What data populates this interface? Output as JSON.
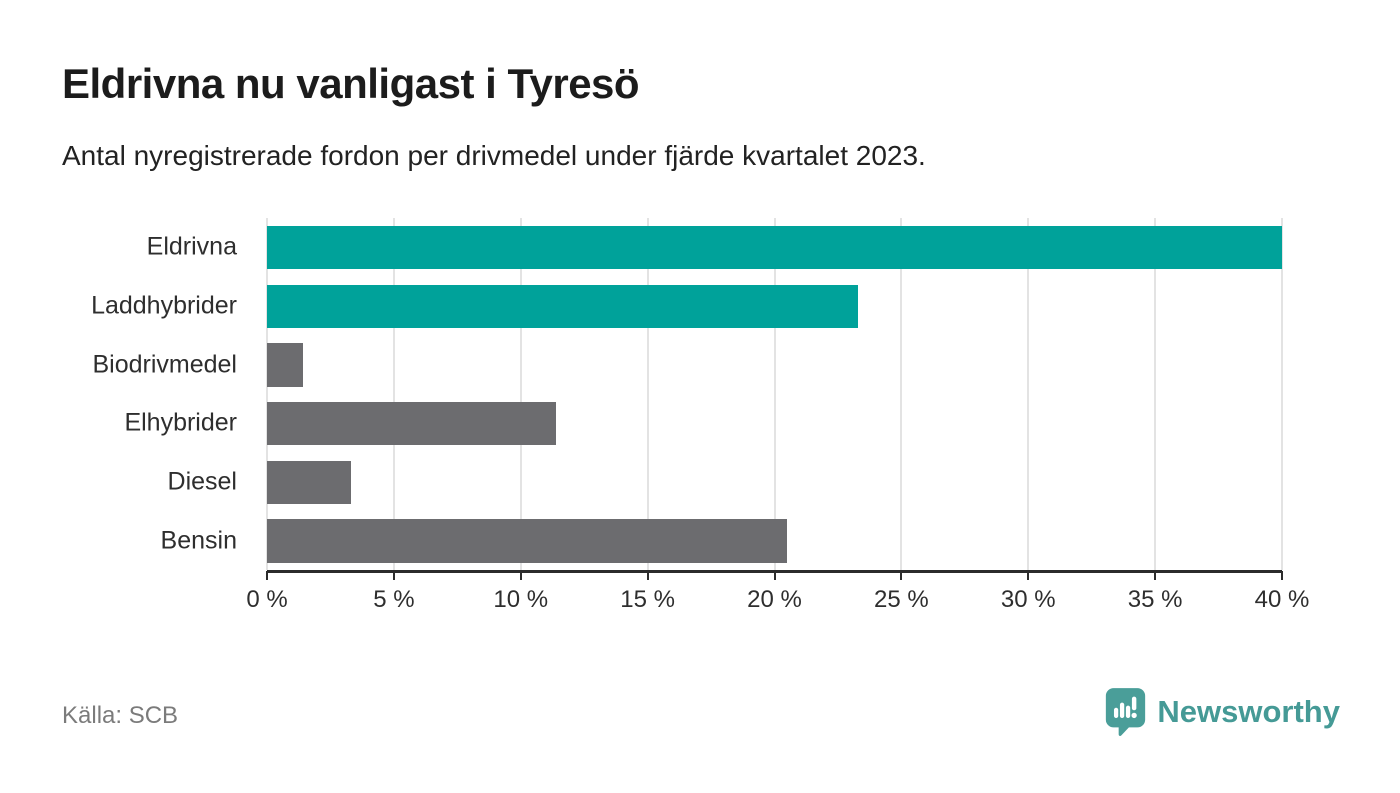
{
  "header": {
    "title": "Eldrivna nu vanligast i Tyresö",
    "subtitle": "Antal nyregistrerade fordon per drivmedel under fjärde kvartalet 2023."
  },
  "chart_data": {
    "type": "bar",
    "orientation": "horizontal",
    "title": "Eldrivna nu vanligast i Tyresö",
    "subtitle": "Antal nyregistrerade fordon per drivmedel under fjärde kvartalet 2023.",
    "categories": [
      "Eldrivna",
      "Laddhybrider",
      "Biodrivmedel",
      "Elhybrider",
      "Diesel",
      "Bensin"
    ],
    "values": [
      40.0,
      23.3,
      1.4,
      11.4,
      3.3,
      20.5
    ],
    "unit": "%",
    "bar_colors": [
      "#00a29a",
      "#00a29a",
      "#6c6c6f",
      "#6c6c6f",
      "#6c6c6f",
      "#6c6c6f"
    ],
    "highlight_color": "#00a29a",
    "default_color": "#6c6c6f",
    "xlim": [
      0,
      40
    ],
    "x_ticks": [
      0,
      5,
      10,
      15,
      20,
      25,
      30,
      35,
      40
    ],
    "x_tick_labels": [
      "0 %",
      "5 %",
      "10 %",
      "15 %",
      "20 %",
      "25 %",
      "30 %",
      "35 %",
      "40 %"
    ],
    "xlabel": "",
    "ylabel": "",
    "grid": true,
    "gridline_color": "#e3e3e3",
    "axis_color": "#2b2b2b",
    "legend": "none"
  },
  "footer": {
    "source": "Källa: SCB",
    "logo_text": "Newsworthy",
    "logo_color": "#4a9e99"
  }
}
